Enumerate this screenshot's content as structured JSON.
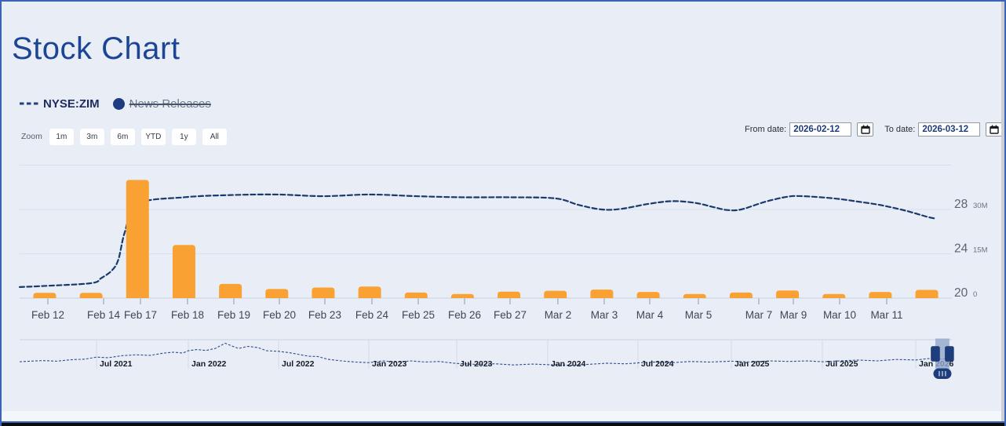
{
  "page": {
    "title": "Stock Chart"
  },
  "legend": {
    "series_label": "NYSE:ZIM",
    "news_label": "News Releases"
  },
  "toolbar": {
    "zoom_label": "Zoom",
    "buttons": [
      "1m",
      "3m",
      "6m",
      "YTD",
      "1y",
      "All"
    ]
  },
  "date_controls": {
    "from_label": "From date:",
    "from_value": "2026-02-12",
    "to_label": "To date:",
    "to_value": "2026-03-12"
  },
  "colors": {
    "background": "#e9eef6",
    "frame_blue": "#3c64b4",
    "title_blue": "#1c4695",
    "bar_orange": "#f9a233",
    "line_navy": "#1a3a6d",
    "navigator_navy": "#2c4d8f",
    "handle_navy": "#1e3d7c",
    "gridline": "#d9e0ec",
    "axis_line": "#c7d1e0"
  },
  "chart_data": {
    "type": "line+bar",
    "title": "Stock Chart",
    "series_names": [
      "NYSE:ZIM",
      "News Releases"
    ],
    "price_axis": {
      "tick_labels": [
        "28",
        "24",
        "20"
      ],
      "grid_values": [
        32,
        28,
        24,
        20
      ],
      "base_value": 20,
      "units_per_grid": 4
    },
    "volume_axis": {
      "tick_labels": [
        "30M",
        "15M",
        "0"
      ],
      "grid_values_M": [
        45,
        30,
        15,
        0
      ]
    },
    "x_ticks": [
      {
        "label": "Feb 12",
        "f": 0.0303
      },
      {
        "label": "Feb 14",
        "f": 0.0901
      },
      {
        "label": "Feb 17",
        "f": 0.1296
      },
      {
        "label": "Feb 18",
        "f": 0.1801
      },
      {
        "label": "Feb 19",
        "f": 0.2298
      },
      {
        "label": "Feb 20",
        "f": 0.2786
      },
      {
        "label": "Feb 23",
        "f": 0.3274
      },
      {
        "label": "Feb 24",
        "f": 0.3779
      },
      {
        "label": "Feb 25",
        "f": 0.4276
      },
      {
        "label": "Feb 26",
        "f": 0.4773
      },
      {
        "label": "Feb 27",
        "f": 0.5261
      },
      {
        "label": "Mar 2",
        "f": 0.5774
      },
      {
        "label": "Mar 3",
        "f": 0.6271
      },
      {
        "label": "Mar 4",
        "f": 0.6759
      },
      {
        "label": "Mar 5",
        "f": 0.7281
      },
      {
        "label": "Mar 7",
        "f": 0.7929
      },
      {
        "label": "Mar 9",
        "f": 0.83
      },
      {
        "label": "Mar 10",
        "f": 0.8796
      },
      {
        "label": "Mar 11",
        "f": 0.9301
      }
    ],
    "bars": {
      "name": "volume",
      "centers_f": [
        0.0269,
        0.0767,
        0.1265,
        0.1763,
        0.2261,
        0.2759,
        0.3257,
        0.3755,
        0.4253,
        0.4751,
        0.5249,
        0.5747,
        0.6245,
        0.6743,
        0.7241,
        0.7739,
        0.8237,
        0.8735,
        0.9233,
        0.9731
      ],
      "values_M": [
        1.8,
        1.8,
        40,
        18,
        4.8,
        3.1,
        3.6,
        3.9,
        1.9,
        1.4,
        2.2,
        2.5,
        2.9,
        2.1,
        1.4,
        1.9,
        2.6,
        1.4,
        2.1,
        2.8
      ]
    },
    "line": {
      "name": "NYSE:ZIM price",
      "points": [
        [
          0,
          21.0
        ],
        [
          0.0269,
          21.1
        ],
        [
          0.0767,
          21.35
        ],
        [
          0.0875,
          21.8
        ],
        [
          0.099,
          22.5
        ],
        [
          0.106,
          23.5
        ],
        [
          0.113,
          26.0
        ],
        [
          0.1265,
          28.5
        ],
        [
          0.1763,
          29.1
        ],
        [
          0.2261,
          29.3
        ],
        [
          0.2759,
          29.35
        ],
        [
          0.3257,
          29.2
        ],
        [
          0.3755,
          29.35
        ],
        [
          0.4253,
          29.2
        ],
        [
          0.4751,
          29.1
        ],
        [
          0.5249,
          29.1
        ],
        [
          0.5747,
          29.0
        ],
        [
          0.6,
          28.4
        ],
        [
          0.6245,
          28.0
        ],
        [
          0.645,
          28.05
        ],
        [
          0.6743,
          28.5
        ],
        [
          0.7,
          28.75
        ],
        [
          0.7241,
          28.6
        ],
        [
          0.745,
          28.2
        ],
        [
          0.759,
          27.95
        ],
        [
          0.7739,
          28.0
        ],
        [
          0.8,
          28.7
        ],
        [
          0.8237,
          29.15
        ],
        [
          0.84,
          29.2
        ],
        [
          0.8735,
          29.0
        ],
        [
          0.9,
          28.7
        ],
        [
          0.9233,
          28.4
        ],
        [
          0.95,
          27.9
        ],
        [
          0.9731,
          27.35
        ],
        [
          0.981,
          27.2
        ]
      ]
    },
    "navigator": {
      "ticks": [
        {
          "label": "Jul 2021",
          "f": 0.0825
        },
        {
          "label": "Jan 2022",
          "f": 0.181
        },
        {
          "label": "Jul 2022",
          "f": 0.2778
        },
        {
          "label": "Jan 2023",
          "f": 0.3746
        },
        {
          "label": "Jul 2023",
          "f": 0.4689
        },
        {
          "label": "Jan 2024",
          "f": 0.5665
        },
        {
          "label": "Jul 2024",
          "f": 0.6633
        },
        {
          "label": "Jan 2025",
          "f": 0.7635
        },
        {
          "label": "Jul 2025",
          "f": 0.8611
        },
        {
          "label": "Jan 2026",
          "f": 0.9613
        }
      ],
      "series": [
        [
          0,
          0.24
        ],
        [
          0.012,
          0.26
        ],
        [
          0.025,
          0.28
        ],
        [
          0.04,
          0.26
        ],
        [
          0.055,
          0.31
        ],
        [
          0.07,
          0.33
        ],
        [
          0.0825,
          0.4
        ],
        [
          0.095,
          0.38
        ],
        [
          0.11,
          0.45
        ],
        [
          0.125,
          0.48
        ],
        [
          0.14,
          0.46
        ],
        [
          0.155,
          0.54
        ],
        [
          0.165,
          0.57
        ],
        [
          0.175,
          0.54
        ],
        [
          0.181,
          0.62
        ],
        [
          0.19,
          0.66
        ],
        [
          0.2,
          0.63
        ],
        [
          0.21,
          0.7
        ],
        [
          0.2205,
          0.88
        ],
        [
          0.228,
          0.78
        ],
        [
          0.235,
          0.7
        ],
        [
          0.245,
          0.77
        ],
        [
          0.2555,
          0.73
        ],
        [
          0.265,
          0.62
        ],
        [
          0.2778,
          0.6
        ],
        [
          0.29,
          0.55
        ],
        [
          0.3,
          0.49
        ],
        [
          0.31,
          0.43
        ],
        [
          0.32,
          0.42
        ],
        [
          0.33,
          0.33
        ],
        [
          0.345,
          0.27
        ],
        [
          0.36,
          0.23
        ],
        [
          0.3746,
          0.21
        ],
        [
          0.39,
          0.27
        ],
        [
          0.405,
          0.23
        ],
        [
          0.42,
          0.27
        ],
        [
          0.435,
          0.23
        ],
        [
          0.45,
          0.25
        ],
        [
          0.4689,
          0.18
        ],
        [
          0.49,
          0.15
        ],
        [
          0.51,
          0.17
        ],
        [
          0.53,
          0.13
        ],
        [
          0.55,
          0.16
        ],
        [
          0.5665,
          0.14
        ],
        [
          0.59,
          0.12
        ],
        [
          0.61,
          0.15
        ],
        [
          0.63,
          0.19
        ],
        [
          0.65,
          0.17
        ],
        [
          0.6633,
          0.2
        ],
        [
          0.68,
          0.23
        ],
        [
          0.7,
          0.21
        ],
        [
          0.72,
          0.25
        ],
        [
          0.74,
          0.23
        ],
        [
          0.7635,
          0.26
        ],
        [
          0.785,
          0.23
        ],
        [
          0.805,
          0.27
        ],
        [
          0.825,
          0.25
        ],
        [
          0.845,
          0.27
        ],
        [
          0.8611,
          0.24
        ],
        [
          0.88,
          0.27
        ],
        [
          0.9,
          0.3
        ],
        [
          0.92,
          0.27
        ],
        [
          0.94,
          0.32
        ],
        [
          0.9613,
          0.3
        ],
        [
          0.975,
          0.35
        ],
        [
          0.99,
          0.33
        ],
        [
          1,
          0.38
        ]
      ],
      "selection": {
        "from_f": 0.9823,
        "to_f": 0.9974
      }
    }
  }
}
